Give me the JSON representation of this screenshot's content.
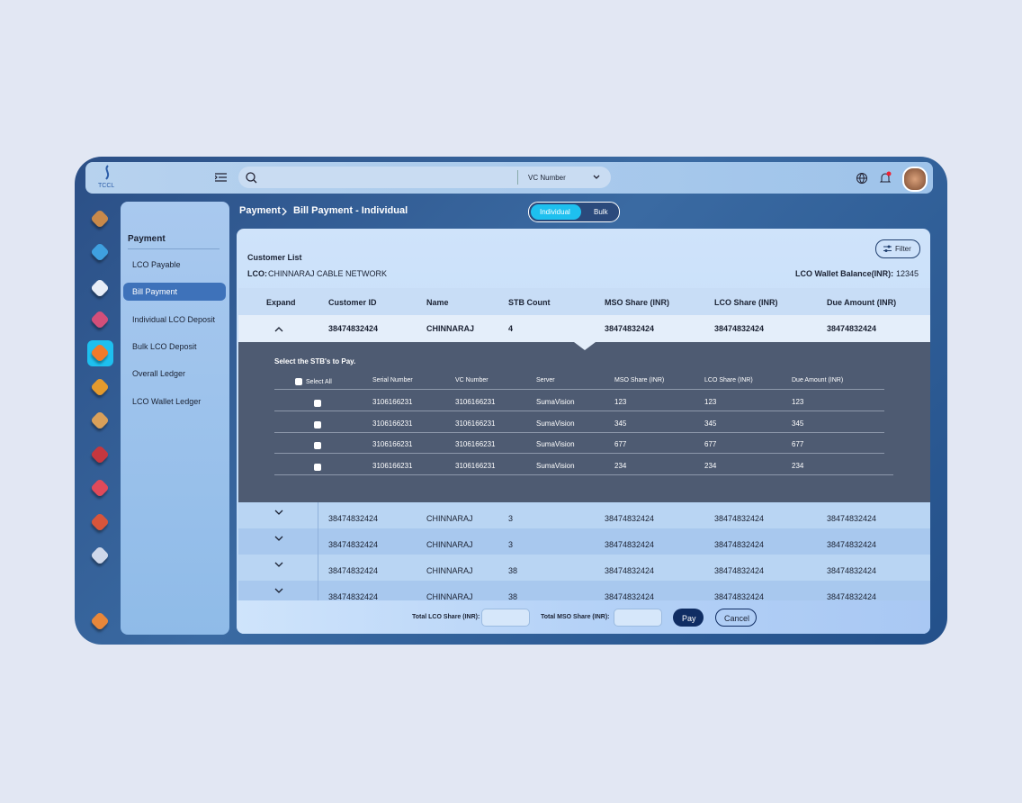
{
  "header": {
    "brand": "TCCL",
    "search_type": "VC Number"
  },
  "breadcrumb": [
    "Payment",
    "Bill Payment - Individual"
  ],
  "toggle": [
    "Individual",
    "Bulk"
  ],
  "sidebar": {
    "title": "Payment",
    "items": [
      "LCO Payable",
      "Bill Payment",
      "Individual LCO Deposit",
      "Bulk LCO Deposit",
      "Overall Ledger",
      "LCO Wallet Ledger"
    ]
  },
  "panel": {
    "title": "Customer List",
    "filter": "Filter",
    "lco_label": "LCO:",
    "lco_name": "CHINNARAJ CABLE NETWORK",
    "wallet_label": "LCO Wallet Balance(INR):",
    "wallet_value": 12345
  },
  "table": {
    "headers": [
      "Expand",
      "Customer ID",
      "Name",
      "STB Count",
      "MSO Share (INR)",
      "LCO Share (INR)",
      "Due Amount (INR)"
    ],
    "rows": [
      [
        "38474832424",
        "CHINNARAJ",
        4,
        "38474832424",
        "38474832424",
        "38474832424"
      ],
      [
        "38474832424",
        "CHINNARAJ",
        3,
        "38474832424",
        "38474832424",
        "38474832424"
      ],
      [
        "38474832424",
        "CHINNARAJ",
        3,
        "38474832424",
        "38474832424",
        "38474832424"
      ],
      [
        "38474832424",
        "CHINNARAJ",
        38,
        "38474832424",
        "38474832424",
        "38474832424"
      ],
      [
        "38474832424",
        "CHINNARAJ",
        38,
        "38474832424",
        "38474832424",
        "38474832424"
      ]
    ]
  },
  "stb": {
    "title": "Select the STB's to Pay.",
    "select_all": "Select All",
    "headers": [
      "Serial Number",
      "VC Number",
      "Server",
      "MSO Share (INR)",
      "LCO Share (INR)",
      "Due Amount (INR)"
    ],
    "rows": [
      [
        "3106166231",
        "3106166231",
        "SumaVision",
        123,
        123,
        123
      ],
      [
        "3106166231",
        "3106166231",
        "SumaVision",
        345,
        345,
        345
      ],
      [
        "3106166231",
        "3106166231",
        "SumaVision",
        677,
        677,
        677
      ],
      [
        "3106166231",
        "3106166231",
        "SumaVision",
        234,
        234,
        234
      ]
    ]
  },
  "footer": {
    "lco_total_label": "Total LCO Share (INR):",
    "mso_total_label": "Total MSO Share (INR):",
    "pay": "Pay",
    "cancel": "Cancel"
  }
}
